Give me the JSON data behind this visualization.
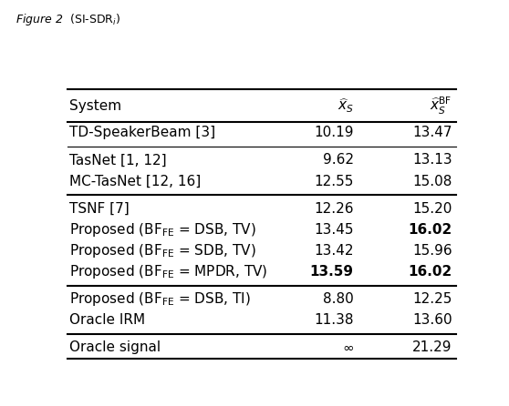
{
  "title": "Figure 2  $(\\mathrm{SI\\text{-}SDR}_i)$",
  "rows": [
    {
      "system": "TD-SpeakerBeam [3]",
      "xs": "10.19",
      "xsbf": "13.47",
      "bold_xs": false,
      "bold_xsbf": false,
      "group": 1
    },
    {
      "system": "TasNet [1, 12]",
      "xs": "9.62",
      "xsbf": "13.13",
      "bold_xs": false,
      "bold_xsbf": false,
      "group": 1
    },
    {
      "system": "MC-TasNet [12, 16]",
      "xs": "12.55",
      "xsbf": "15.08",
      "bold_xs": false,
      "bold_xsbf": false,
      "group": 2
    },
    {
      "system": "TSNF [7]",
      "xs": "12.26",
      "xsbf": "15.20",
      "bold_xs": false,
      "bold_xsbf": false,
      "group": 2
    },
    {
      "system": "Proposed (BF$_{\\mathrm{FE}}$ = DSB, TV)",
      "xs": "13.45",
      "xsbf": "16.02",
      "bold_xs": false,
      "bold_xsbf": true,
      "group": 3
    },
    {
      "system": "Proposed (BF$_{\\mathrm{FE}}$ = SDB, TV)",
      "xs": "13.42",
      "xsbf": "15.96",
      "bold_xs": false,
      "bold_xsbf": false,
      "group": 3
    },
    {
      "system": "Proposed (BF$_{\\mathrm{FE}}$ = MPDR, TV)",
      "xs": "13.59",
      "xsbf": "16.02",
      "bold_xs": true,
      "bold_xsbf": true,
      "group": 3
    },
    {
      "system": "Proposed (BF$_{\\mathrm{FE}}$ = DSB, TI)",
      "xs": "8.80",
      "xsbf": "12.25",
      "bold_xs": false,
      "bold_xsbf": false,
      "group": 3
    },
    {
      "system": "Oracle IRM",
      "xs": "11.38",
      "xsbf": "13.60",
      "bold_xs": false,
      "bold_xsbf": false,
      "group": 4
    },
    {
      "system": "Oracle signal",
      "xs": "$\\infty$",
      "xsbf": "21.29",
      "bold_xs": false,
      "bold_xsbf": false,
      "group": 4
    }
  ],
  "group_separators_after": [
    1,
    3,
    7,
    9
  ],
  "thick_sep_after": [
    3,
    7,
    9
  ],
  "col_header_system": "System",
  "col_header_xs": "$\\widehat{x}_S$",
  "col_header_xsbf": "$\\widehat{x}_S^{\\mathrm{BF}}$",
  "fontsize": 11,
  "lw_thick": 1.5,
  "lw_thin": 0.8
}
